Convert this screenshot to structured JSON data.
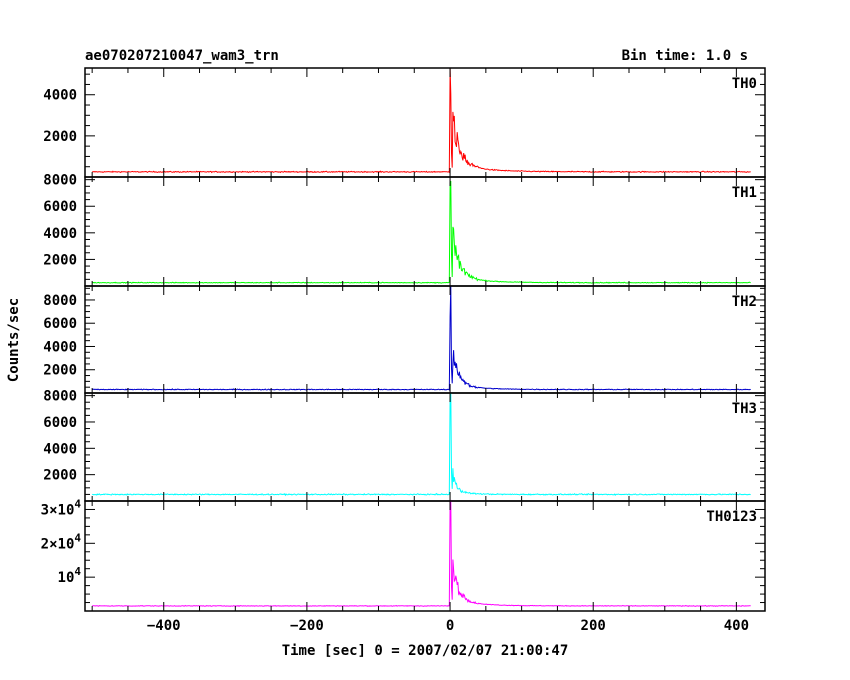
{
  "chart_data": {
    "type": "line",
    "title": "ae070207210047_wam3_trn",
    "bin_label": "Bin time: 1.0 s",
    "xlabel": "Time [sec] 0 = 2007/02/07 21:00:47",
    "ylabel": "Counts/sec",
    "xlim": [
      -510,
      440
    ],
    "x_ticks": [
      -400,
      -200,
      0,
      200,
      400
    ],
    "x_tick_labels": [
      "−400",
      "−200",
      "0",
      "200",
      "400"
    ],
    "grid": false,
    "time_range": [
      -500,
      420
    ],
    "burst_start": 0,
    "panels": [
      {
        "name": "TH0",
        "color": "#ff0000",
        "ylim": [
          0,
          5300
        ],
        "y_ticks": [
          2000,
          4000
        ],
        "y_tick_labels": [
          "2000",
          "4000"
        ],
        "baseline": 250,
        "peak": 5200,
        "peak_time": 1,
        "secondary_peak": 2400,
        "secondary_time": 4,
        "decay_seconds": 10,
        "noise": 25
      },
      {
        "name": "TH1",
        "color": "#00ff00",
        "ylim": [
          0,
          8200
        ],
        "y_ticks": [
          2000,
          4000,
          6000,
          8000
        ],
        "y_tick_labels": [
          "2000",
          "4000",
          "6000",
          "8000"
        ],
        "baseline": 250,
        "peak": 8000,
        "peak_time": 1,
        "secondary_peak": 3300,
        "secondary_time": 4,
        "decay_seconds": 9,
        "noise": 30
      },
      {
        "name": "TH2",
        "color": "#0000cc",
        "ylim": [
          0,
          9200
        ],
        "y_ticks": [
          2000,
          4000,
          6000,
          8000
        ],
        "y_tick_labels": [
          "2000",
          "4000",
          "6000",
          "8000"
        ],
        "baseline": 300,
        "peak": 9100,
        "peak_time": 1,
        "secondary_peak": 3000,
        "secondary_time": 4,
        "decay_seconds": 8,
        "noise": 35
      },
      {
        "name": "TH3",
        "color": "#00ffff",
        "ylim": [
          0,
          8200
        ],
        "y_ticks": [
          2000,
          4000,
          6000,
          8000
        ],
        "y_tick_labels": [
          "2000",
          "4000",
          "6000",
          "8000"
        ],
        "baseline": 500,
        "peak": 7800,
        "peak_time": 1,
        "secondary_peak": 1800,
        "secondary_time": 4,
        "decay_seconds": 5,
        "noise": 40
      },
      {
        "name": "TH0123",
        "color": "#ff00ff",
        "ylim": [
          0,
          32500
        ],
        "y_ticks": [
          10000,
          20000,
          30000
        ],
        "y_tick_labels": [
          {
            "mantissa": "",
            "base": "10",
            "exp": "4"
          },
          {
            "mantissa": "2×",
            "base": "10",
            "exp": "4"
          },
          {
            "mantissa": "3×",
            "base": "10",
            "exp": "4"
          }
        ],
        "baseline": 1500,
        "peak": 31000,
        "peak_time": 1,
        "secondary_peak": 10500,
        "secondary_time": 4,
        "decay_seconds": 9,
        "noise": 90
      }
    ]
  }
}
